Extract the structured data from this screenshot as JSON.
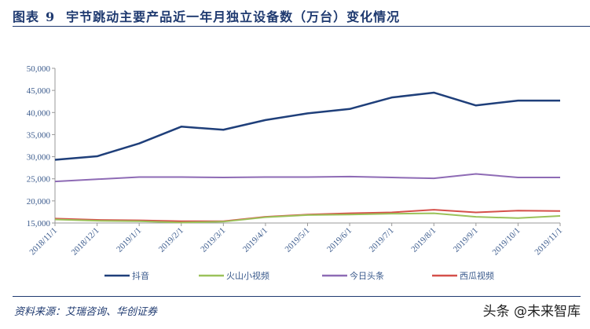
{
  "header": {
    "figure_label": "图表",
    "figure_number": "9",
    "title": "宇节跳动主要产品近一年月独立设备数（万台）变化情况"
  },
  "footer": {
    "source": "资料来源：艾瑞咨询、华创证券",
    "watermark": "头条 @未来智库"
  },
  "chart_data": {
    "type": "line",
    "title": "",
    "xlabel": "",
    "ylabel": "",
    "ylim": [
      15000,
      50000
    ],
    "yticks": [
      "15,000",
      "20,000",
      "25,000",
      "30,000",
      "35,000",
      "40,000",
      "45,000",
      "50,000"
    ],
    "ytick_values": [
      15000,
      20000,
      25000,
      30000,
      35000,
      40000,
      45000,
      50000
    ],
    "categories": [
      "2018/11/1",
      "2018/12/1",
      "2019/1/1",
      "2019/2/1",
      "2019/3/1",
      "2019/4/1",
      "2019/5/1",
      "2019/6/1",
      "2019/7/1",
      "2019/8/1",
      "2019/9/1",
      "2019/10/1",
      "2019/11/1"
    ],
    "grid": false,
    "legend_position": "bottom",
    "series": [
      {
        "name": "抖音",
        "color": "#1f3f7a",
        "values": [
          29300,
          30100,
          33000,
          36800,
          36100,
          38300,
          39800,
          40800,
          43400,
          44500,
          41600,
          42700,
          42700
        ]
      },
      {
        "name": "火山小视频",
        "color": "#9bc25a",
        "values": [
          15800,
          15500,
          15400,
          15100,
          15300,
          16300,
          16800,
          16900,
          17100,
          17200,
          16400,
          16100,
          16600
        ]
      },
      {
        "name": "今日头条",
        "color": "#8e6bb5",
        "values": [
          24400,
          24900,
          25400,
          25400,
          25300,
          25400,
          25400,
          25500,
          25300,
          25100,
          26100,
          25300,
          25300
        ]
      },
      {
        "name": "西瓜视频",
        "color": "#d5504a",
        "values": [
          16000,
          15700,
          15600,
          15400,
          15400,
          16400,
          16900,
          17200,
          17400,
          18000,
          17400,
          17800,
          17700
        ]
      }
    ]
  }
}
